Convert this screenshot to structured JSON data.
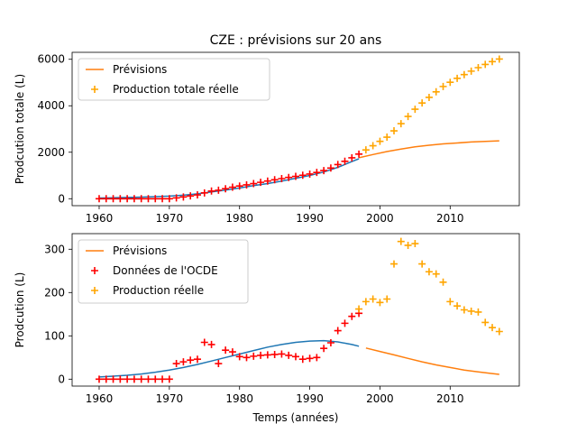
{
  "chart_data": [
    {
      "type": "line",
      "title": "CZE : prévisions sur 20 ans",
      "xlabel": "",
      "ylabel": "Prodcution totale (L)",
      "xlim": [
        1956.15,
        2019.85
      ],
      "ylim": [
        -300,
        6300
      ],
      "xticks": [
        1960,
        1970,
        1980,
        1990,
        2000,
        2010
      ],
      "yticks": [
        0,
        2000,
        4000,
        6000
      ],
      "legend": "top-left",
      "legend_entries": [
        "Prévisions",
        "Production totale réelle"
      ],
      "colors": {
        "fit": "#1f77b4",
        "forecast": "#ff7f0e",
        "oecd": "#ff0000",
        "real": "#ffa500"
      },
      "series": [
        {
          "role": "fit",
          "x": [
            1960,
            1962,
            1964,
            1966,
            1968,
            1970,
            1972,
            1974,
            1976,
            1978,
            1980,
            1982,
            1984,
            1986,
            1988,
            1990,
            1992,
            1994,
            1996,
            1997
          ],
          "y": [
            30,
            40,
            55,
            70,
            90,
            110,
            150,
            210,
            290,
            370,
            460,
            560,
            650,
            760,
            880,
            1000,
            1150,
            1350,
            1600,
            1720
          ]
        },
        {
          "name": "Prévisions",
          "role": "forecast",
          "x": [
            1997,
            1999,
            2001,
            2003,
            2005,
            2007,
            2009,
            2011,
            2013,
            2015,
            2017
          ],
          "y": [
            1760,
            1900,
            2030,
            2140,
            2230,
            2300,
            2360,
            2400,
            2440,
            2470,
            2490
          ]
        },
        {
          "role": "oecd",
          "x": [
            1960,
            1961,
            1962,
            1963,
            1964,
            1965,
            1966,
            1967,
            1968,
            1969,
            1970,
            1971,
            1972,
            1973,
            1974,
            1975,
            1976,
            1977,
            1978,
            1979,
            1980,
            1981,
            1982,
            1983,
            1984,
            1985,
            1986,
            1987,
            1988,
            1989,
            1990,
            1991,
            1992,
            1993,
            1994,
            1995,
            1996,
            1997
          ],
          "y": [
            0,
            0,
            0,
            0,
            0,
            0,
            0,
            0,
            0,
            0,
            0,
            35,
            75,
            120,
            165,
            250,
            330,
            365,
            430,
            495,
            545,
            595,
            650,
            705,
            760,
            815,
            865,
            915,
            960,
            1010,
            1060,
            1130,
            1210,
            1320,
            1470,
            1610,
            1760,
            1920
          ]
        },
        {
          "name": "Production totale réelle",
          "role": "real",
          "x": [
            1998,
            1999,
            2000,
            2001,
            2002,
            2003,
            2004,
            2005,
            2006,
            2007,
            2008,
            2009,
            2010,
            2011,
            2012,
            2013,
            2014,
            2015,
            2016,
            2017
          ],
          "y": [
            2100,
            2280,
            2470,
            2650,
            2920,
            3230,
            3540,
            3850,
            4120,
            4360,
            4600,
            4830,
            5010,
            5180,
            5340,
            5490,
            5640,
            5780,
            5900,
            6010
          ]
        }
      ]
    },
    {
      "type": "line",
      "title": "",
      "xlabel": "Temps (années)",
      "ylabel": "Prodcution (L)",
      "xlim": [
        1956.15,
        2019.85
      ],
      "ylim": [
        -16,
        336
      ],
      "xticks": [
        1960,
        1970,
        1980,
        1990,
        2000,
        2010
      ],
      "yticks": [
        0,
        100,
        200,
        300
      ],
      "legend": "top-left",
      "legend_entries": [
        "Prévisions",
        "Données de l'OCDE",
        "Production réelle"
      ],
      "colors": {
        "fit": "#1f77b4",
        "forecast": "#ff7f0e",
        "oecd": "#ff0000",
        "real": "#ffa500"
      },
      "series": [
        {
          "role": "fit",
          "x": [
            1960,
            1962,
            1964,
            1966,
            1968,
            1970,
            1972,
            1974,
            1976,
            1978,
            1980,
            1982,
            1984,
            1986,
            1988,
            1990,
            1992,
            1994,
            1996,
            1997
          ],
          "y": [
            5,
            7,
            9,
            12,
            16,
            21,
            27,
            34,
            42,
            50,
            58,
            66,
            74,
            80,
            85,
            88,
            89,
            86,
            80,
            76
          ]
        },
        {
          "name": "Prévisions",
          "role": "forecast",
          "x": [
            1998,
            2000,
            2002,
            2004,
            2006,
            2008,
            2010,
            2012,
            2014,
            2016,
            2017
          ],
          "y": [
            72,
            64,
            56,
            48,
            40,
            33,
            27,
            21,
            17,
            13,
            11
          ]
        },
        {
          "name": "Données de l'OCDE",
          "role": "oecd",
          "x": [
            1960,
            1961,
            1962,
            1963,
            1964,
            1965,
            1966,
            1967,
            1968,
            1969,
            1970,
            1971,
            1972,
            1973,
            1974,
            1975,
            1976,
            1977,
            1978,
            1979,
            1980,
            1981,
            1982,
            1983,
            1984,
            1985,
            1986,
            1987,
            1988,
            1989,
            1990,
            1991,
            1992,
            1993,
            1994,
            1995,
            1996,
            1997
          ],
          "y": [
            0,
            0,
            0,
            0,
            0,
            0,
            0,
            0,
            0,
            0,
            0,
            36,
            40,
            44,
            46,
            85,
            80,
            36,
            67,
            63,
            52,
            50,
            53,
            55,
            56,
            57,
            58,
            55,
            52,
            46,
            48,
            50,
            71,
            84,
            112,
            129,
            145,
            152
          ]
        },
        {
          "name": "Production réelle",
          "role": "real",
          "x": [
            1997,
            1998,
            1999,
            2000,
            2001,
            2002,
            2003,
            2004,
            2005,
            2006,
            2007,
            2008,
            2009,
            2010,
            2011,
            2012,
            2013,
            2014,
            2015,
            2016,
            2017
          ],
          "y": [
            162,
            179,
            185,
            177,
            185,
            266,
            318,
            309,
            313,
            266,
            248,
            243,
            224,
            179,
            169,
            160,
            157,
            155,
            131,
            119,
            110
          ]
        }
      ]
    }
  ]
}
